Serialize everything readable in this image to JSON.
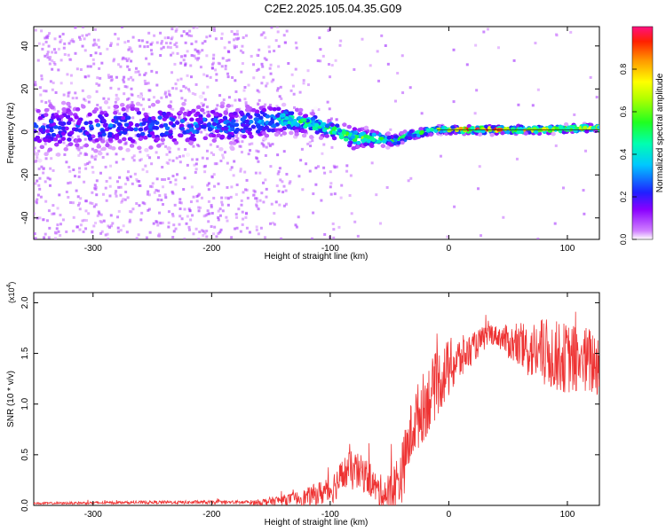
{
  "title": "C2E2.2025.105.04.35.G09",
  "colorbar": {
    "label": "Normalized spectral amplitude",
    "ticks": [
      "0.0",
      "0.2",
      "0.4",
      "0.6",
      "0.8"
    ]
  },
  "chart_data": [
    {
      "type": "heatmap",
      "xlabel": "Height of straight line (km)",
      "ylabel": "Frequency (Hz)",
      "xlim": [
        -350,
        127
      ],
      "ylim": [
        -50,
        49
      ],
      "x_ticks": [
        "-300",
        "-200",
        "-100",
        "0",
        "100"
      ],
      "y_ticks": [
        "40",
        "20",
        "0",
        "-20",
        "-40"
      ],
      "colorscale": "rainbow",
      "zlim": [
        0,
        1
      ],
      "ridge": [
        {
          "x": -350,
          "center": 2,
          "spread": 10,
          "amp": 0.25
        },
        {
          "x": -250,
          "center": 3,
          "spread": 9,
          "amp": 0.28
        },
        {
          "x": -180,
          "center": 3,
          "spread": 8,
          "amp": 0.3
        },
        {
          "x": -140,
          "center": 6,
          "spread": 5,
          "amp": 0.45
        },
        {
          "x": -110,
          "center": 3,
          "spread": 4,
          "amp": 0.5
        },
        {
          "x": -80,
          "center": -3,
          "spread": 4,
          "amp": 0.55
        },
        {
          "x": -60,
          "center": -3,
          "spread": 3,
          "amp": 0.55
        },
        {
          "x": -45,
          "center": -4,
          "spread": 2,
          "amp": 0.5
        },
        {
          "x": -30,
          "center": -1,
          "spread": 2,
          "amp": 0.45
        },
        {
          "x": -10,
          "center": 1,
          "spread": 1.5,
          "amp": 0.6
        },
        {
          "x": 0,
          "center": 1,
          "spread": 1.5,
          "amp": 0.7
        },
        {
          "x": 30,
          "center": 1,
          "spread": 1.5,
          "amp": 0.95
        },
        {
          "x": 80,
          "center": 1,
          "spread": 1.5,
          "amp": 0.75
        },
        {
          "x": 127,
          "center": 2,
          "spread": 1.5,
          "amp": 0.7
        }
      ]
    },
    {
      "type": "line",
      "xlabel": "Height of straight line (km)",
      "ylabel": "SNR (10 * v/v)",
      "y_multiplier": "(x10",
      "y_multiplier_exp": "4",
      "xlim": [
        -350,
        127
      ],
      "ylim": [
        0,
        2.1
      ],
      "x_ticks": [
        "-300",
        "-200",
        "-100",
        "0",
        "100"
      ],
      "y_ticks": [
        "0.0",
        "0.5",
        "1.0",
        "1.5",
        "2.0"
      ],
      "series": [
        {
          "color": "#ee3333",
          "baseline": [
            [
              -350,
              0.02
            ],
            [
              -250,
              0.03
            ],
            [
              -160,
              0.03
            ],
            [
              -120,
              0.08
            ],
            [
              -100,
              0.15
            ],
            [
              -85,
              0.35
            ],
            [
              -70,
              0.3
            ],
            [
              -60,
              0.15
            ],
            [
              -50,
              0.1
            ],
            [
              -40,
              0.3
            ],
            [
              -30,
              0.8
            ],
            [
              -20,
              1.0
            ],
            [
              -10,
              1.2
            ],
            [
              0,
              1.35
            ],
            [
              10,
              1.45
            ],
            [
              25,
              1.6
            ],
            [
              35,
              1.7
            ],
            [
              45,
              1.65
            ],
            [
              60,
              1.55
            ],
            [
              80,
              1.5
            ],
            [
              100,
              1.45
            ],
            [
              127,
              1.4
            ]
          ],
          "noise": [
            [
              -350,
              0.01
            ],
            [
              -170,
              0.02
            ],
            [
              -130,
              0.06
            ],
            [
              -100,
              0.15
            ],
            [
              -80,
              0.2
            ],
            [
              -60,
              0.15
            ],
            [
              -40,
              0.3
            ],
            [
              -20,
              0.35
            ],
            [
              0,
              0.3
            ],
            [
              20,
              0.15
            ],
            [
              40,
              0.1
            ],
            [
              55,
              0.2
            ],
            [
              80,
              0.35
            ],
            [
              127,
              0.35
            ]
          ]
        }
      ]
    }
  ]
}
